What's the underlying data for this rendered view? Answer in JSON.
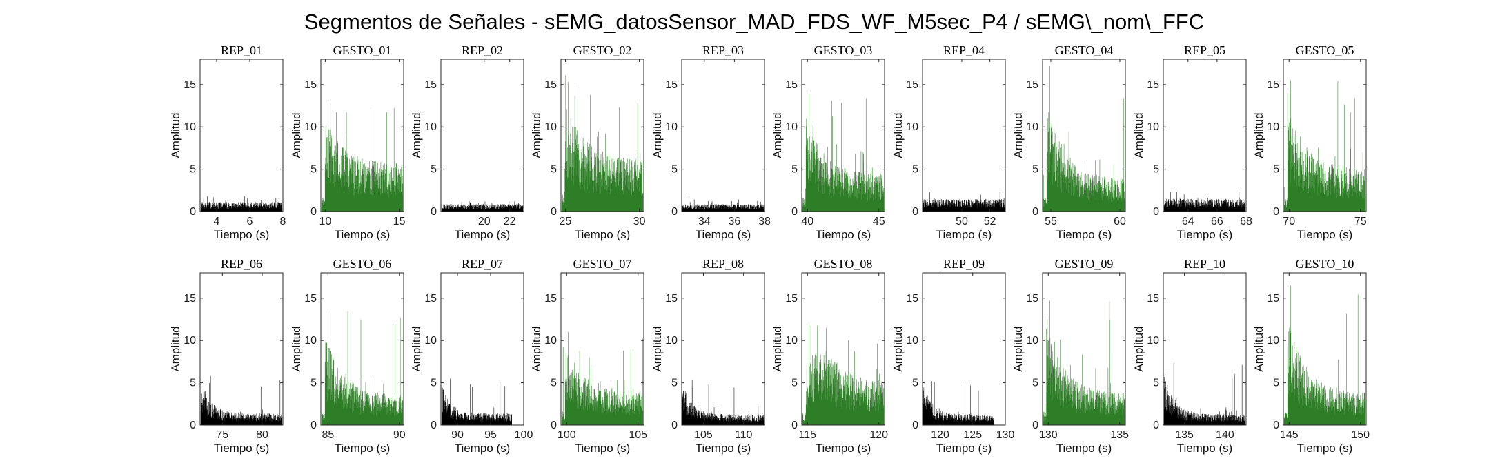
{
  "chart_data": {
    "type": "line",
    "title": "Segmentos de Señales - sEMG_datosSensor_MAD_FDS_WF_M5sec_P4 / sEMG\\_nom\\_FFC",
    "xlabel": "Tiempo (s)",
    "ylabel": "Amplitud",
    "ylim": [
      0,
      18
    ],
    "yticks": [
      0,
      5,
      10,
      15
    ],
    "colors": {
      "rep": "#000000",
      "gesto": "#2e7d27"
    },
    "panels": [
      {
        "title": "REP_01",
        "kind": "rep",
        "xlim": [
          3,
          8
        ],
        "xticks": [
          4,
          6,
          8
        ],
        "base": 0.9,
        "noise": 0.7,
        "peak": 1.8,
        "shape": "flat"
      },
      {
        "title": "GESTO_01",
        "kind": "gesto",
        "xlim": [
          9.7,
          15.3
        ],
        "xticks": [
          10,
          15
        ],
        "base": 4.5,
        "noise": 3.0,
        "peak": 13.2,
        "shape": "burst"
      },
      {
        "title": "REP_02",
        "kind": "rep",
        "xlim": [
          16.6,
          23.1
        ],
        "xticks": [
          20,
          22
        ],
        "base": 0.7,
        "noise": 0.5,
        "peak": 1.2,
        "shape": "flat"
      },
      {
        "title": "GESTO_02",
        "kind": "gesto",
        "xlim": [
          24.7,
          30.3
        ],
        "xticks": [
          25,
          30
        ],
        "base": 5.0,
        "noise": 3.2,
        "peak": 15.3,
        "shape": "burst"
      },
      {
        "title": "REP_03",
        "kind": "rep",
        "xlim": [
          32.5,
          38
        ],
        "xticks": [
          34,
          36,
          38
        ],
        "base": 0.7,
        "noise": 0.5,
        "peak": 1.8,
        "shape": "flat"
      },
      {
        "title": "GESTO_03",
        "kind": "gesto",
        "xlim": [
          39.6,
          45.4
        ],
        "xticks": [
          40,
          45
        ],
        "base": 3.5,
        "noise": 2.8,
        "peak": 14.0,
        "shape": "burst"
      },
      {
        "title": "REP_04",
        "kind": "rep",
        "xlim": [
          47.2,
          53.1
        ],
        "xticks": [
          50,
          52
        ],
        "base": 1.2,
        "noise": 0.9,
        "peak": 2.3,
        "shape": "flat"
      },
      {
        "title": "GESTO_04",
        "kind": "gesto",
        "xlim": [
          54.4,
          60.4
        ],
        "xticks": [
          55,
          60
        ],
        "base": 3.0,
        "noise": 2.5,
        "peak": 17.2,
        "shape": "burst"
      },
      {
        "title": "REP_05",
        "kind": "rep",
        "xlim": [
          62.3,
          68
        ],
        "xticks": [
          64,
          66,
          68
        ],
        "base": 1.2,
        "noise": 0.9,
        "peak": 2.3,
        "shape": "flat"
      },
      {
        "title": "GESTO_05",
        "kind": "gesto",
        "xlim": [
          69.6,
          75.4
        ],
        "xticks": [
          70,
          75
        ],
        "base": 4.0,
        "noise": 3.0,
        "peak": 15.5,
        "shape": "burst"
      },
      {
        "title": "REP_06",
        "kind": "rep",
        "xlim": [
          72.2,
          82.6
        ],
        "xticks": [
          75,
          80
        ],
        "base": 1.1,
        "noise": 0.8,
        "peak": 5.8,
        "shape": "decay"
      },
      {
        "title": "GESTO_06",
        "kind": "gesto",
        "xlim": [
          84.5,
          90.3
        ],
        "xticks": [
          85,
          90
        ],
        "base": 2.8,
        "noise": 2.2,
        "peak": 13.5,
        "shape": "burst"
      },
      {
        "title": "REP_07",
        "kind": "rep",
        "xlim": [
          87.5,
          100
        ],
        "xticks": [
          90,
          95,
          100
        ],
        "base": 1.1,
        "noise": 0.8,
        "peak": 5.5,
        "shape": "decay",
        "xend": 98.2
      },
      {
        "title": "GESTO_07",
        "kind": "gesto",
        "xlim": [
          99.6,
          105.4
        ],
        "xticks": [
          100,
          105
        ],
        "base": 3.2,
        "noise": 2.6,
        "peak": 11.0,
        "shape": "burst"
      },
      {
        "title": "REP_08",
        "kind": "rep",
        "xlim": [
          102.3,
          112.6
        ],
        "xticks": [
          105,
          110
        ],
        "base": 1.0,
        "noise": 0.8,
        "peak": 5.3,
        "shape": "decay"
      },
      {
        "title": "GESTO_08",
        "kind": "gesto",
        "xlim": [
          114.6,
          120.4
        ],
        "xticks": [
          115,
          120
        ],
        "base": 4.0,
        "noise": 3.0,
        "peak": 12.0,
        "shape": "broad"
      },
      {
        "title": "REP_09",
        "kind": "rep",
        "xlim": [
          117.3,
          130
        ],
        "xticks": [
          120,
          125,
          130
        ],
        "base": 1.0,
        "noise": 0.7,
        "peak": 5.2,
        "shape": "decay",
        "xend": 128.2
      },
      {
        "title": "GESTO_09",
        "kind": "gesto",
        "xlim": [
          129.6,
          135.4
        ],
        "xticks": [
          130,
          135
        ],
        "base": 3.0,
        "noise": 2.5,
        "peak": 14.7,
        "shape": "burst"
      },
      {
        "title": "REP_10",
        "kind": "rep",
        "xlim": [
          132.4,
          142.6
        ],
        "xticks": [
          135,
          140
        ],
        "base": 1.0,
        "noise": 0.7,
        "peak": 7.3,
        "shape": "decay"
      },
      {
        "title": "GESTO_10",
        "kind": "gesto",
        "xlim": [
          144.6,
          150.4
        ],
        "xticks": [
          145,
          150
        ],
        "base": 3.0,
        "noise": 2.6,
        "peak": 16.5,
        "shape": "burst"
      }
    ]
  }
}
